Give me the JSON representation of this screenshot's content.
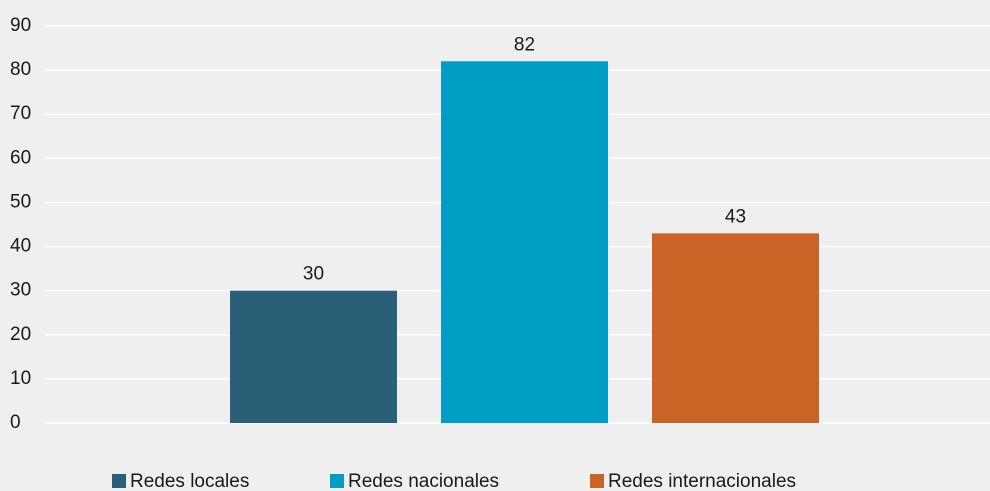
{
  "chart_data": {
    "type": "bar",
    "categories": [
      "Redes locales",
      "Redes nacionales",
      "Redes internacionales"
    ],
    "values": [
      30,
      82,
      43
    ],
    "colors": [
      "#2a5f78",
      "#009ec5",
      "#c96424"
    ],
    "ylim": [
      0,
      90
    ],
    "yticks": [
      0,
      10,
      20,
      30,
      40,
      50,
      60,
      70,
      80,
      90
    ],
    "grid": true,
    "legend": "bottom"
  }
}
